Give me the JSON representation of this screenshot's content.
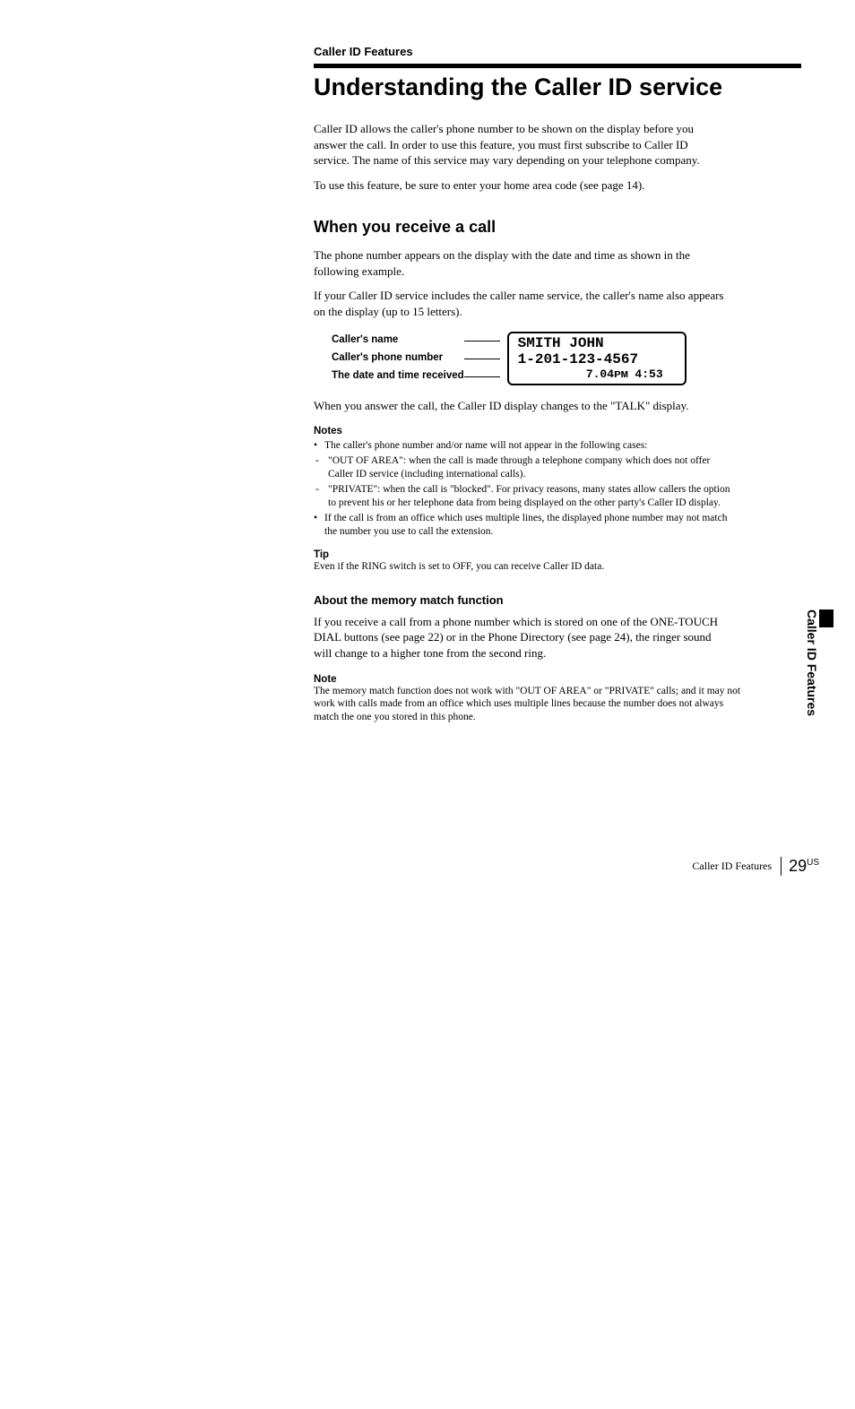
{
  "sectionLabel": "Caller ID Features",
  "title": "Understanding the Caller ID service",
  "intro1": "Caller ID allows the caller's phone number to be shown on the display before you answer the call. In order to use this feature, you must first subscribe to Caller ID service. The name of this service may vary depending on your telephone company.",
  "intro2": "To use this feature, be sure to enter your home area code (see page 14).",
  "subhead1": "When you receive a call",
  "p1": "The phone number appears on the display with the date and time as shown in the following example.",
  "p2": "If your Caller ID service includes the caller name service, the caller's name also appears on the display (up to 15 letters).",
  "diagram": {
    "labels": {
      "name": "Caller's name",
      "phone": "Caller's phone number",
      "datetime": "The date and time received"
    },
    "display": {
      "line1": "SMITH JOHN",
      "line2": "1-201-123-4567",
      "line3": "7.04ᴘᴍ 4:53"
    }
  },
  "p3": "When you answer the call, the Caller ID display changes to the \"TALK\" display.",
  "notesHead": "Notes",
  "notes": {
    "n1": "The caller's phone number and/or name will not appear in the following cases:",
    "n2": "\"OUT OF AREA\": when the call is made through a telephone company which does not offer Caller ID service (including international calls).",
    "n3": "\"PRIVATE\": when the call is \"blocked\". For privacy reasons, many states allow callers the option to prevent his or her telephone data from being displayed on the other party's Caller ID display.",
    "n4": "If the call is from an office which uses multiple lines, the displayed phone number may not match the number you use to call the extension."
  },
  "tipHead": "Tip",
  "tipText": "Even if the RING switch is set to OFF, you can receive Caller ID data.",
  "subsection": "About the memory match function",
  "p4": "If you receive a call from a phone number which is stored on one of the ONE-TOUCH DIAL buttons (see page 22) or in the Phone Directory (see page 24), the ringer sound will change to a higher tone from the second ring.",
  "noteHead": "Note",
  "noteText": "The memory match function does not work with \"OUT OF AREA\" or \"PRIVATE\" calls; and it may not work with calls made from an office which uses multiple lines because the number does not always match the one you stored in this phone.",
  "sideTab": "Caller ID Features",
  "footer": {
    "label": "Caller ID Features",
    "pageNum": "29",
    "pageSup": "US"
  }
}
